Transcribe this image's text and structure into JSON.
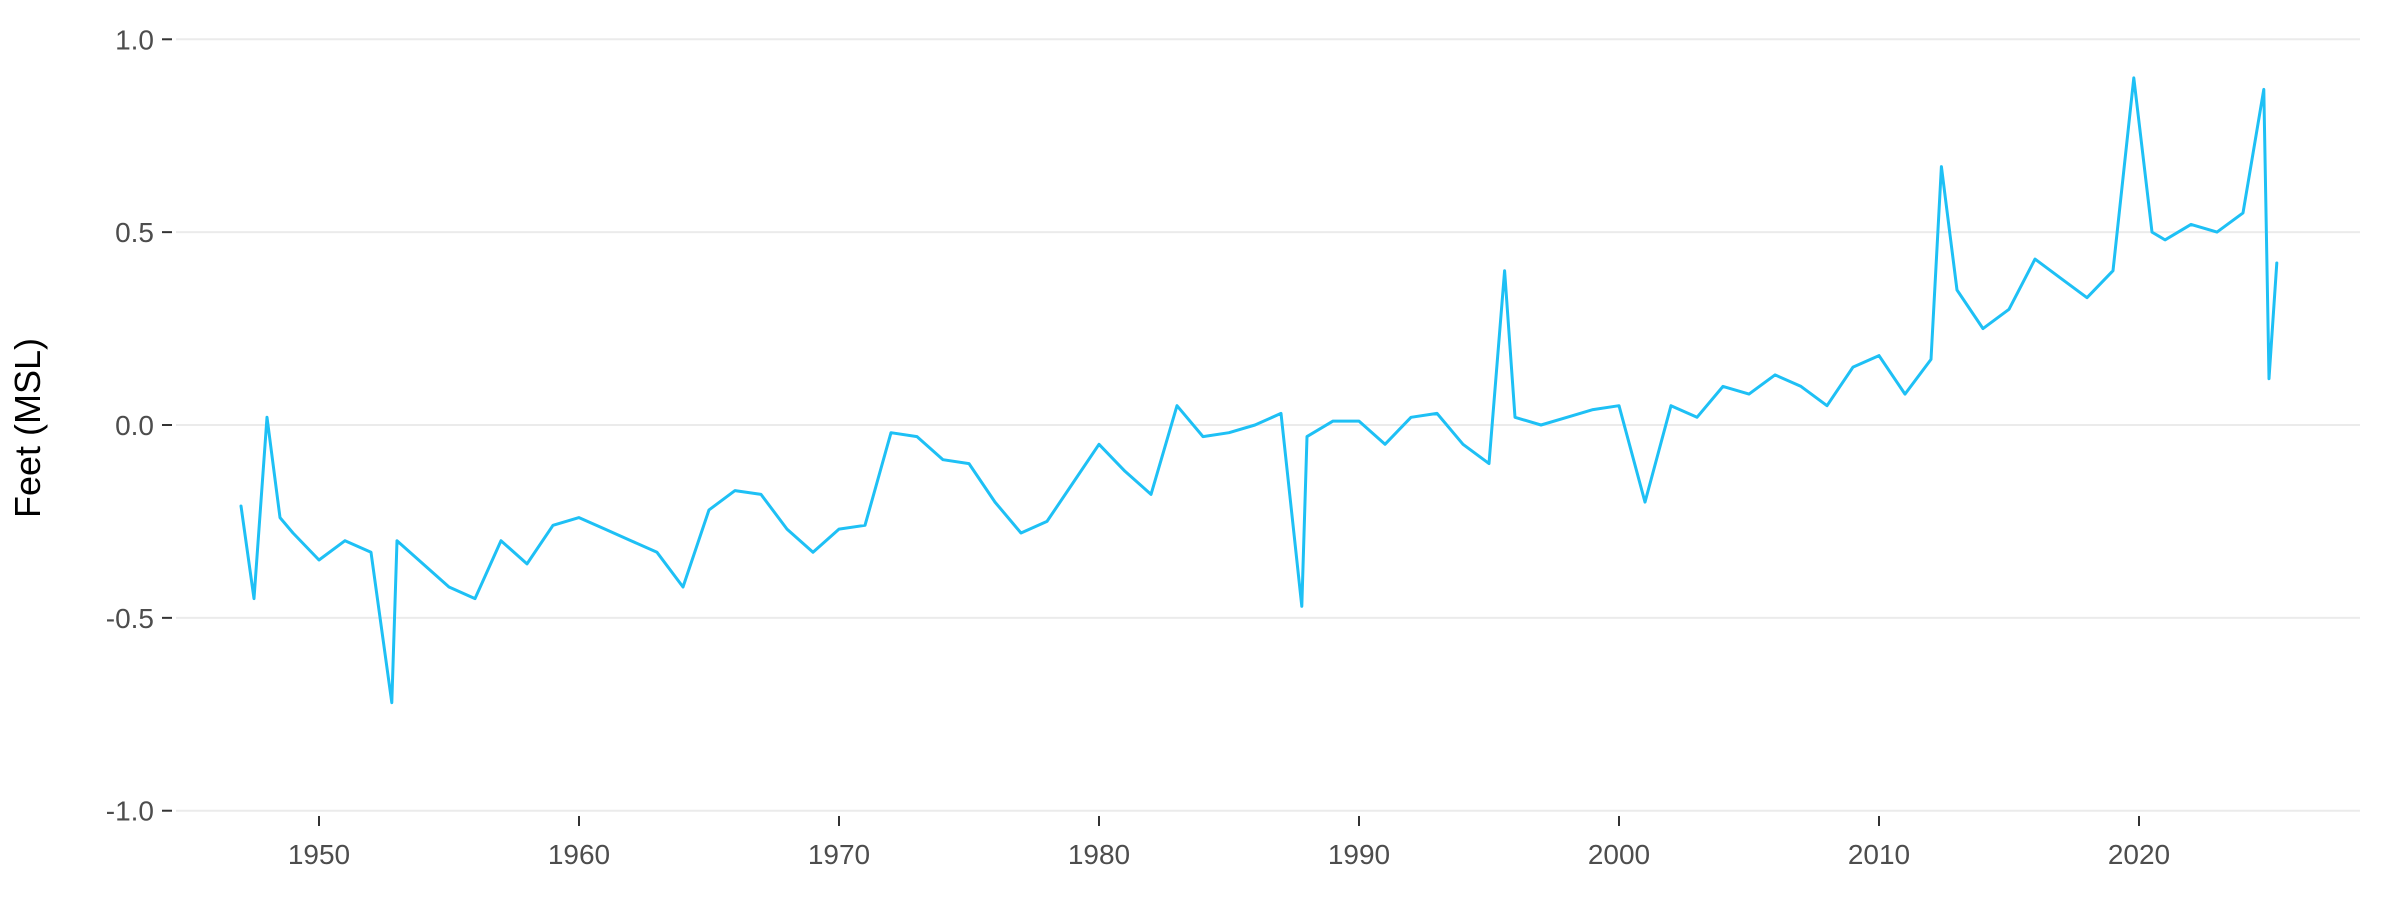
{
  "chart_data": {
    "type": "line",
    "ylabel": "Feet (MSL)",
    "xlabel": "",
    "title": "",
    "xlim": [
      1944.5,
      2028.5
    ],
    "ylim": [
      -1.05,
      1.05
    ],
    "grid": {
      "horizontal": true,
      "vertical": false
    },
    "x_ticks": [
      1950,
      1960,
      1970,
      1980,
      1990,
      2000,
      2010,
      2020
    ],
    "x_tick_labels": [
      "1950",
      "1960",
      "1970",
      "1980",
      "1990",
      "2000",
      "2010",
      "2020"
    ],
    "y_ticks": [
      -1.0,
      -0.5,
      0.0,
      0.5,
      1.0
    ],
    "y_tick_labels": [
      "-1.0",
      "-0.5",
      "0.0",
      "0.5",
      "1.0"
    ],
    "line_color": "#1ec0f5",
    "grid_color": "#ebebeb",
    "series": [
      {
        "x": [
          1947.0,
          1947.5,
          1948.0,
          1948.5,
          1949.0,
          1950.0,
          1951.0,
          1952.0,
          1952.8,
          1953.0,
          1954.0,
          1955.0,
          1956.0,
          1957.0,
          1958.0,
          1959.0,
          1960.0,
          1961.0,
          1962.0,
          1963.0,
          1964.0,
          1965.0,
          1966.0,
          1967.0,
          1968.0,
          1969.0,
          1970.0,
          1971.0,
          1972.0,
          1973.0,
          1974.0,
          1975.0,
          1976.0,
          1977.0,
          1978.0,
          1979.0,
          1980.0,
          1981.0,
          1982.0,
          1983.0,
          1984.0,
          1985.0,
          1986.0,
          1987.0,
          1987.8,
          1988.0,
          1989.0,
          1990.0,
          1991.0,
          1992.0,
          1993.0,
          1994.0,
          1995.0,
          1995.6,
          1996.0,
          1997.0,
          1998.0,
          1999.0,
          2000.0,
          2001.0,
          2002.0,
          2003.0,
          2004.0,
          2005.0,
          2006.0,
          2007.0,
          2008.0,
          2009.0,
          2010.0,
          2011.0,
          2012.0,
          2012.4,
          2013.0,
          2014.0,
          2015.0,
          2016.0,
          2017.0,
          2018.0,
          2019.0,
          2019.8,
          2020.5,
          2021.0,
          2022.0,
          2023.0,
          2024.0,
          2024.8,
          2025.0,
          2025.3
        ],
        "y": [
          -0.21,
          -0.45,
          0.02,
          -0.24,
          -0.28,
          -0.35,
          -0.3,
          -0.33,
          -0.72,
          -0.3,
          -0.36,
          -0.42,
          -0.45,
          -0.3,
          -0.36,
          -0.26,
          -0.24,
          -0.27,
          -0.3,
          -0.33,
          -0.42,
          -0.22,
          -0.17,
          -0.18,
          -0.27,
          -0.33,
          -0.27,
          -0.26,
          -0.02,
          -0.03,
          -0.09,
          -0.1,
          -0.2,
          -0.28,
          -0.25,
          -0.15,
          -0.05,
          -0.12,
          -0.18,
          0.05,
          -0.03,
          -0.02,
          0.0,
          0.03,
          -0.47,
          -0.03,
          0.01,
          0.01,
          -0.05,
          0.02,
          0.03,
          -0.05,
          -0.1,
          0.4,
          0.02,
          0.0,
          0.02,
          0.04,
          0.05,
          -0.2,
          0.05,
          0.02,
          0.1,
          0.08,
          0.13,
          0.1,
          0.05,
          0.15,
          0.18,
          0.08,
          0.17,
          0.67,
          0.35,
          0.25,
          0.3,
          0.43,
          0.38,
          0.33,
          0.4,
          0.9,
          0.5,
          0.48,
          0.52,
          0.5,
          0.55,
          0.87,
          0.12,
          0.42
        ]
      }
    ]
  }
}
